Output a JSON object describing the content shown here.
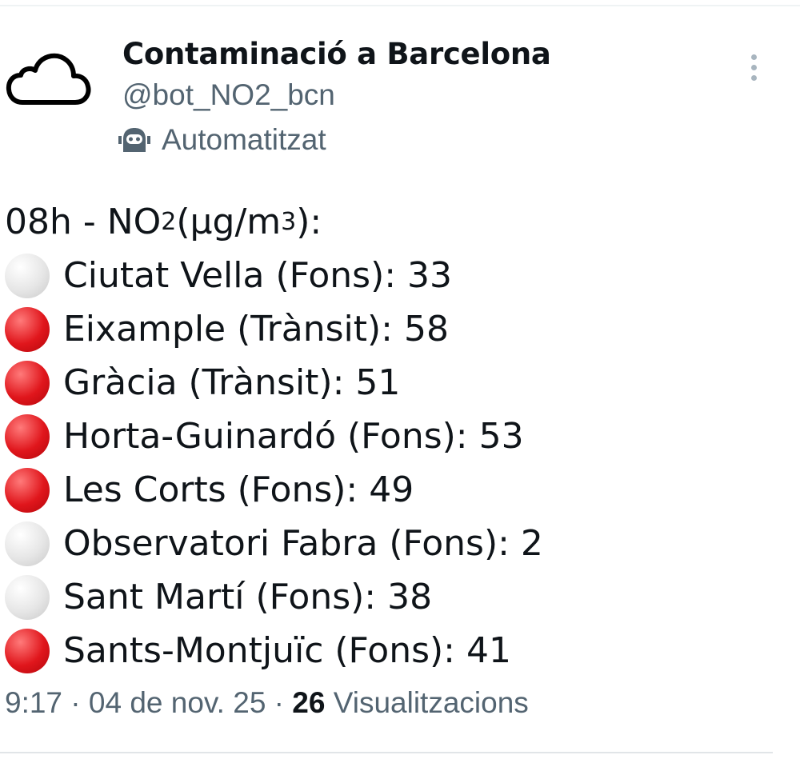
{
  "author": {
    "name": "Contaminació a Barcelona",
    "handle": "@bot_NO2_bcn",
    "label": "Automatitzat",
    "avatar_icon": "cloud-icon",
    "label_icon": "robot-icon"
  },
  "post": {
    "header_prefix": "08h - NO",
    "header_sub": "2",
    "header_mid": " (µg/m",
    "header_sup": "3",
    "header_suffix": "):",
    "colors": {
      "red": "#e0161c",
      "white": "#e6e6e6"
    },
    "stations": [
      {
        "status": "white",
        "text": "Ciutat Vella (Fons): 33"
      },
      {
        "status": "red",
        "text": "Eixample (Trànsit): 58"
      },
      {
        "status": "red",
        "text": "Gràcia (Trànsit): 51"
      },
      {
        "status": "red",
        "text": "Horta-Guinardó (Fons): 53"
      },
      {
        "status": "red",
        "text": "Les Corts (Fons): 49"
      },
      {
        "status": "white",
        "text": "Observatori Fabra (Fons): 2"
      },
      {
        "status": "white",
        "text": "Sant Martí (Fons): 38"
      },
      {
        "status": "red",
        "text": "Sants-Montjuïc (Fons): 41"
      }
    ]
  },
  "meta": {
    "time": "9:17",
    "date": "04 de nov. 25",
    "views_count": "26",
    "views_label": "Visualitzacions"
  }
}
